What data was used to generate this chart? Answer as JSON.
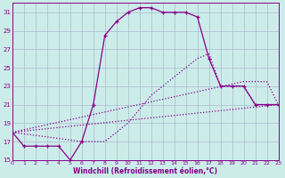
{
  "xlabel": "Windchill (Refroidissement éolien,°C)",
  "xlim": [
    0,
    23
  ],
  "ylim": [
    15,
    32
  ],
  "yticks": [
    15,
    17,
    19,
    21,
    23,
    25,
    27,
    29,
    31
  ],
  "xticks": [
    0,
    1,
    2,
    3,
    4,
    5,
    6,
    7,
    8,
    9,
    10,
    11,
    12,
    13,
    14,
    15,
    16,
    17,
    18,
    19,
    20,
    21,
    22,
    23
  ],
  "background_color": "#ccecea",
  "grid_color": "#aabbcc",
  "line_color": "#880088",
  "series": [
    {
      "x": [
        0,
        23
      ],
      "y": [
        18.0,
        21.0
      ],
      "marker": "none",
      "linestyle": "dotted",
      "linewidth": 0.9
    },
    {
      "x": [
        0,
        20,
        21,
        22,
        23
      ],
      "y": [
        18.0,
        23.5,
        23.5,
        23.5,
        21.0
      ],
      "marker": "none",
      "linestyle": "dotted",
      "linewidth": 0.9
    },
    {
      "x": [
        0,
        1,
        2,
        3,
        4,
        5,
        6,
        7,
        8,
        9,
        10,
        11,
        12,
        13,
        14,
        15,
        16,
        17,
        18,
        19,
        20,
        21,
        22,
        23
      ],
      "y": [
        18.0,
        16.5,
        16.5,
        16.5,
        16.5,
        15.0,
        17.0,
        21.0,
        28.5,
        30.0,
        31.0,
        31.5,
        31.5,
        31.0,
        31.0,
        31.0,
        30.5,
        26.0,
        23.0,
        23.0,
        23.0,
        21.0,
        21.0,
        21.0
      ],
      "marker": "+",
      "linestyle": "solid",
      "linewidth": 0.9
    },
    {
      "x": [
        0,
        6,
        7,
        8,
        9,
        10,
        11,
        12,
        13,
        14,
        15,
        16,
        17,
        18,
        19,
        20,
        21,
        22,
        23
      ],
      "y": [
        18.0,
        17.0,
        17.0,
        17.0,
        18.0,
        19.0,
        20.5,
        22.0,
        23.0,
        24.0,
        25.0,
        26.0,
        26.5,
        23.0,
        23.0,
        23.0,
        21.0,
        21.0,
        21.0
      ],
      "marker": "none",
      "linestyle": "dotted",
      "linewidth": 0.9
    }
  ]
}
